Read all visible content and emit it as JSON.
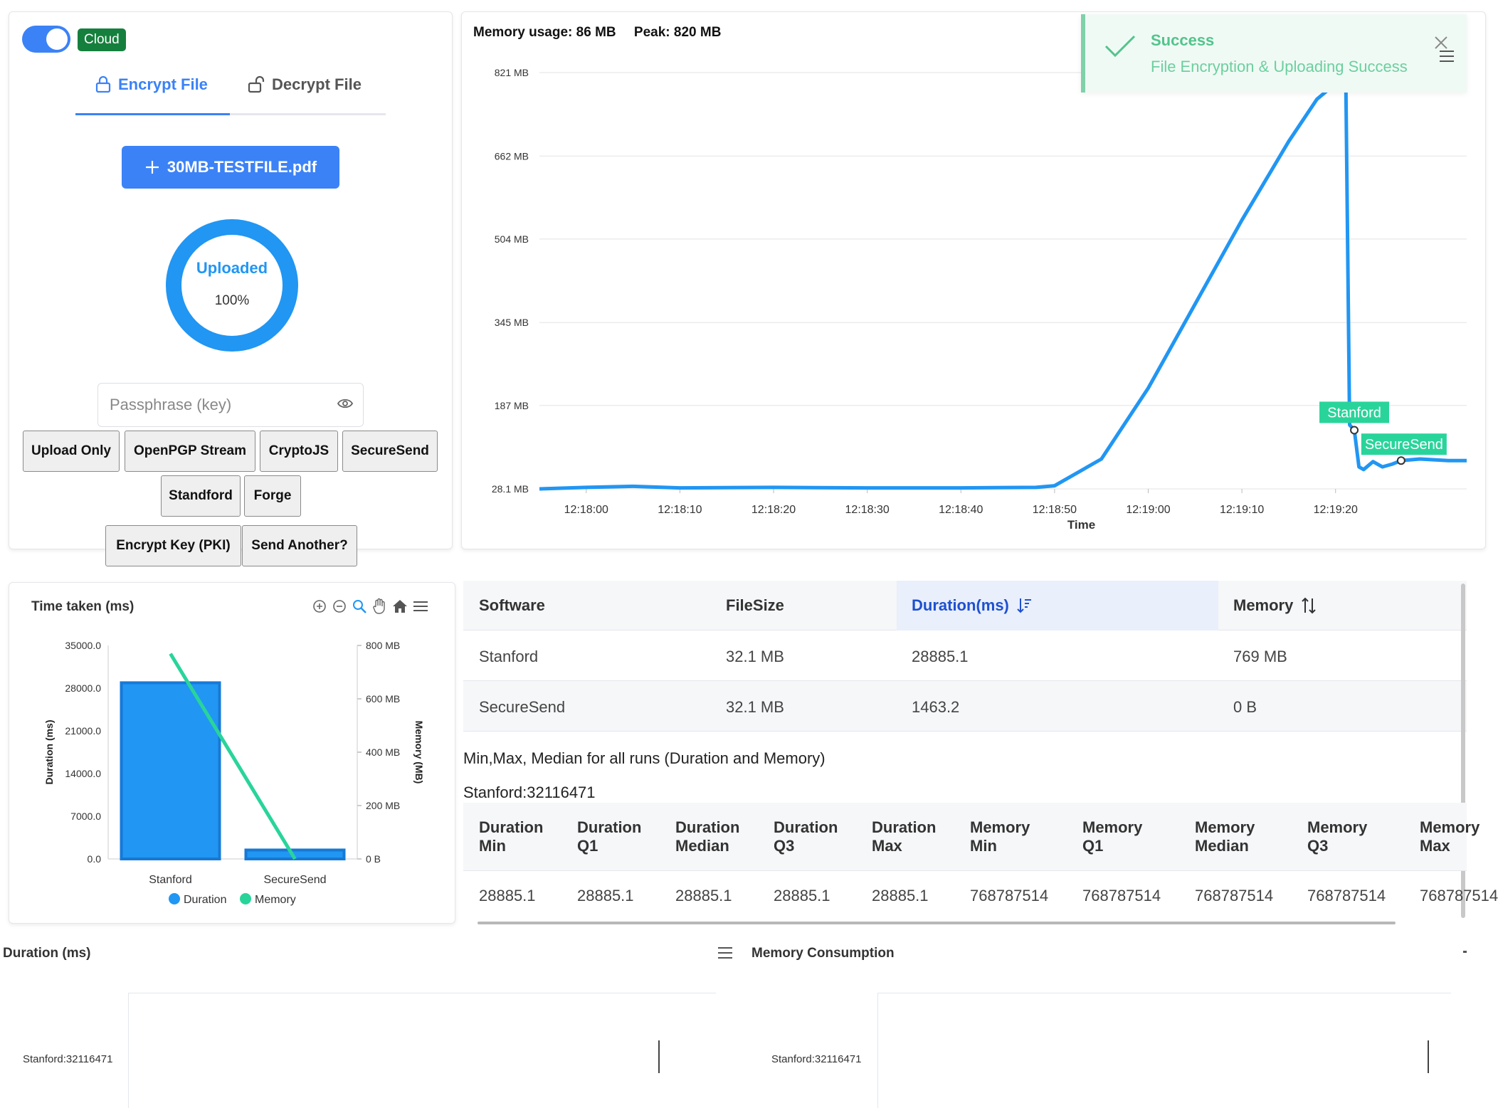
{
  "left_panel": {
    "mode_badge": "Cloud",
    "tabs": [
      {
        "label": "Encrypt File",
        "active": true
      },
      {
        "label": "Decrypt File",
        "active": false
      }
    ],
    "file_button": "30MB-TESTFILE.pdf",
    "progress": {
      "label": "Uploaded",
      "percent_text": "100%",
      "value": 100
    },
    "passphrase_placeholder": "Passphrase (key)",
    "buttons_row1": [
      "Upload Only",
      "OpenPGP Stream",
      "CryptoJS",
      "SecureSend"
    ],
    "buttons_row2": [
      "Standford",
      "Forge"
    ],
    "buttons_row3": [
      "Encrypt Key (PKI)",
      "Send Another?"
    ]
  },
  "memory_panel": {
    "usage_label": "Memory usage: 86 MB",
    "peak_label": "Peak: 820 MB"
  },
  "toast": {
    "title": "Success",
    "message": "File Encryption & Uploading Success"
  },
  "colors": {
    "primary": "#3b82f6",
    "line": "#2196f3",
    "green": "#29d49b",
    "success": "#52c48c"
  },
  "chart_data": [
    {
      "type": "line",
      "xlabel": "Time",
      "y_ticks": [
        "821 MB",
        "662 MB",
        "504 MB",
        "345 MB",
        "187 MB",
        "28.1 MB"
      ],
      "y_tick_values": [
        821,
        662,
        504,
        345,
        187,
        28.1
      ],
      "x_ticks": [
        "12:18:00",
        "12:18:10",
        "12:18:20",
        "12:18:30",
        "12:18:40",
        "12:18:50",
        "12:19:00",
        "12:19:10",
        "12:19:20"
      ],
      "x_tick_values": [
        0,
        10,
        20,
        30,
        40,
        50,
        60,
        70,
        80
      ],
      "xlim": [
        -5,
        94
      ],
      "ylim": [
        28.1,
        821
      ],
      "series": [
        {
          "x": [
            -5,
            0,
            5,
            10,
            20,
            30,
            40,
            48,
            50,
            55,
            60,
            65,
            70,
            75,
            78,
            80,
            81,
            81.1,
            81.5,
            82,
            82.5,
            83,
            84,
            85,
            86,
            87,
            89,
            92,
            94
          ],
          "y": [
            28.1,
            31,
            33,
            30,
            31,
            30,
            30,
            31,
            34,
            85,
            220,
            380,
            540,
            690,
            770,
            800,
            812,
            800,
            150,
            140,
            70,
            65,
            80,
            70,
            75,
            82,
            85,
            82,
            82
          ]
        }
      ],
      "annotations": [
        {
          "label": "Stanford",
          "x": 82,
          "y": 140
        },
        {
          "label": "SecureSend",
          "x": 87,
          "y": 82
        }
      ]
    },
    {
      "type": "bar",
      "title": "Time taken (ms)",
      "categories": [
        "Stanford",
        "SecureSend"
      ],
      "series": [
        {
          "name": "Duration",
          "values": [
            28885.1,
            1463.2
          ]
        },
        {
          "name": "Memory",
          "values": [
            769,
            0
          ]
        }
      ],
      "ylabel": "Duration (ms)",
      "y2label": "Memory (MB)",
      "ylim": [
        0,
        35000
      ],
      "y2lim": [
        0,
        800
      ],
      "y_ticks": [
        "35000.0",
        "28000.0",
        "21000.0",
        "14000.0",
        "7000.0",
        "0.0"
      ],
      "y_tick_values": [
        35000,
        28000,
        21000,
        14000,
        7000,
        0
      ],
      "y2_ticks": [
        "800 MB",
        "600 MB",
        "400 MB",
        "200 MB",
        "0 B"
      ],
      "y2_tick_values": [
        800,
        600,
        400,
        200,
        0
      ],
      "legend": [
        "Duration",
        "Memory"
      ]
    },
    {
      "type": "bar",
      "title": "Duration (ms)",
      "categories": [
        "Stanford:32116471"
      ]
    },
    {
      "type": "bar",
      "title": "Memory Consumption",
      "categories": [
        "Stanford:32116471"
      ]
    }
  ],
  "results_table": {
    "headers": [
      "Software",
      "FileSize",
      "Duration(ms)",
      "Memory"
    ],
    "rows": [
      [
        "Stanford",
        "32.1 MB",
        "28885.1",
        "769 MB"
      ],
      [
        "SecureSend",
        "32.1 MB",
        "1463.2",
        "0 B"
      ]
    ]
  },
  "stats": {
    "heading": "Min,Max, Median for all runs (Duration and Memory)",
    "label": "Stanford:32116471",
    "headers": [
      [
        "Duration",
        "Min"
      ],
      [
        "Duration",
        "Q1"
      ],
      [
        "Duration",
        "Median"
      ],
      [
        "Duration",
        "Q3"
      ],
      [
        "Duration",
        "Max"
      ],
      [
        "Memory",
        "Min"
      ],
      [
        "Memory",
        "Q1"
      ],
      [
        "Memory",
        "Median"
      ],
      [
        "Memory",
        "Q3"
      ],
      [
        "Memory",
        "Max"
      ]
    ],
    "values": [
      "28885.1",
      "28885.1",
      "28885.1",
      "28885.1",
      "28885.1",
      "768787514",
      "768787514",
      "768787514",
      "768787514",
      "768787514"
    ]
  }
}
